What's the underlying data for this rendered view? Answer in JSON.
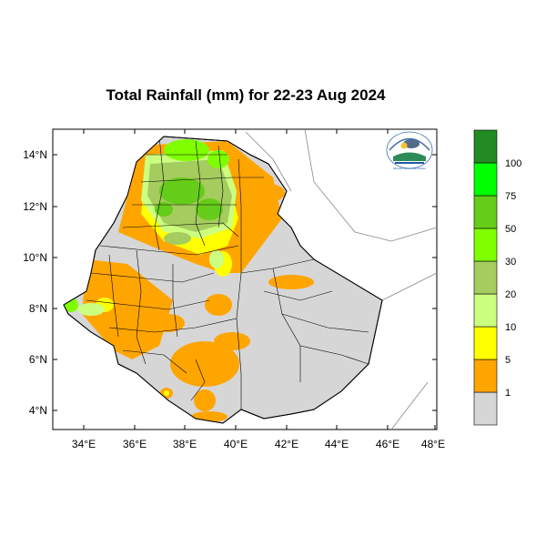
{
  "title": "Total Rainfall (mm) for 22-23 Aug 2024",
  "axes": {
    "lat_ticks": [
      "14°N",
      "12°N",
      "10°N",
      "8°N",
      "6°N",
      "4°N"
    ],
    "lon_ticks": [
      "34°E",
      "36°E",
      "38°E",
      "40°E",
      "42°E",
      "44°E",
      "46°E",
      "48°E"
    ]
  },
  "colorbar": {
    "classes": [
      {
        "label": "",
        "color": "#d6d6d6"
      },
      {
        "label": "1",
        "color": "#ffa500"
      },
      {
        "label": "5",
        "color": "#ffff00"
      },
      {
        "label": "10",
        "color": "#ccff80"
      },
      {
        "label": "20",
        "color": "#a4cc5e"
      },
      {
        "label": "30",
        "color": "#80ff00"
      },
      {
        "label": "50",
        "color": "#66cc1a"
      },
      {
        "label": "75",
        "color": "#00ff00"
      },
      {
        "label": "100",
        "color": "#228b22"
      }
    ],
    "boundary_labels": [
      "1",
      "5",
      "10",
      "20",
      "30",
      "50",
      "75",
      "100"
    ]
  },
  "logo": {
    "caption": "Ethiopian Meteorology Institute"
  }
}
